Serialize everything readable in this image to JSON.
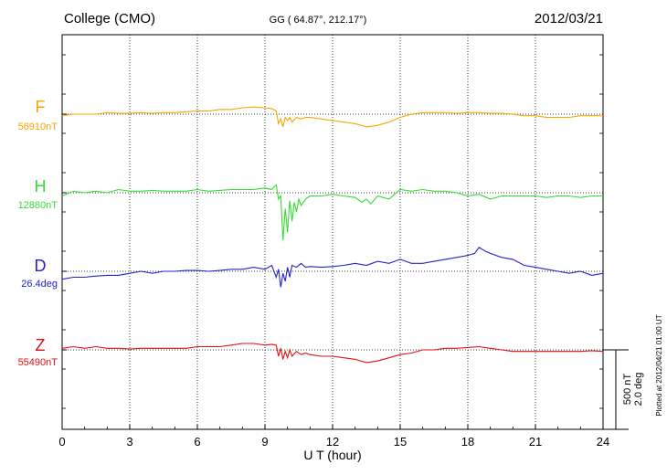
{
  "header": {
    "station": "College (CMO)",
    "coords": "GG ( 64.87°, 212.17°)",
    "date": "2012/03/21"
  },
  "plot_note": "Plotted at 2012/04/21 01:00 UT",
  "chart_data": {
    "type": "line",
    "xlabel": "U T (hour)",
    "xlim": [
      0,
      24
    ],
    "xticks": [
      "0",
      "3",
      "6",
      "9",
      "12",
      "15",
      "18",
      "21",
      "24"
    ],
    "grid": true,
    "scale_bar": {
      "line1": "500 nT",
      "line2": "2.0 deg"
    },
    "series": [
      {
        "name": "F",
        "baseline_label": "56910nT",
        "color": "#f5a500",
        "x": [
          0,
          0.5,
          1,
          1.5,
          2,
          2.5,
          3,
          3.5,
          4,
          4.5,
          5,
          5.5,
          6,
          6.5,
          7,
          7.5,
          8,
          8.5,
          9,
          9.3,
          9.5,
          9.6,
          9.7,
          9.8,
          9.9,
          10,
          10.1,
          10.2,
          10.4,
          10.6,
          10.8,
          11,
          11.5,
          12,
          12.5,
          13,
          13.5,
          14,
          14.5,
          15,
          15.5,
          16,
          16.5,
          17,
          17.5,
          18,
          18.5,
          19,
          19.5,
          20,
          20.5,
          21,
          21.5,
          22,
          22.5,
          23,
          23.5,
          24
        ],
        "values": [
          -10,
          0,
          0,
          0,
          10,
          5,
          5,
          10,
          5,
          10,
          10,
          15,
          20,
          20,
          30,
          30,
          40,
          45,
          40,
          35,
          20,
          -60,
          -30,
          -80,
          -20,
          -40,
          -20,
          -50,
          -20,
          -30,
          -20,
          -20,
          -30,
          -40,
          -50,
          -60,
          -80,
          -70,
          -50,
          -20,
          0,
          10,
          10,
          10,
          5,
          10,
          10,
          5,
          5,
          0,
          -10,
          -10,
          -20,
          -20,
          -20,
          -10,
          -10,
          -10
        ]
      },
      {
        "name": "H",
        "baseline_label": "12880nT",
        "color": "#33dd33",
        "x": [
          0,
          0.5,
          1,
          1.5,
          2,
          2.5,
          3,
          3.5,
          4,
          4.5,
          5,
          5.5,
          6,
          6.5,
          7,
          7.5,
          8,
          8.5,
          9,
          9.3,
          9.5,
          9.6,
          9.7,
          9.8,
          9.9,
          10,
          10.1,
          10.2,
          10.3,
          10.4,
          10.5,
          10.6,
          10.8,
          11,
          11.5,
          12,
          12.5,
          13,
          13.3,
          13.5,
          13.7,
          14,
          14.5,
          15,
          15.5,
          16,
          16.5,
          17,
          17.5,
          18,
          18.5,
          19,
          19.5,
          20,
          20.5,
          21,
          21.5,
          22,
          22.5,
          23,
          23.5,
          24
        ],
        "values": [
          -20,
          10,
          0,
          10,
          0,
          20,
          10,
          10,
          15,
          10,
          10,
          10,
          20,
          10,
          15,
          20,
          20,
          20,
          30,
          20,
          50,
          -40,
          -20,
          -300,
          -100,
          -250,
          -50,
          -180,
          -60,
          -120,
          -40,
          -80,
          -40,
          -20,
          -20,
          -10,
          -20,
          -30,
          -60,
          -40,
          -70,
          -20,
          -40,
          20,
          10,
          20,
          10,
          10,
          0,
          -20,
          -10,
          -40,
          -20,
          -20,
          -20,
          -20,
          -30,
          -20,
          -20,
          -30,
          -20,
          -20
        ]
      },
      {
        "name": "D",
        "baseline_label": "26.4deg",
        "color": "#2222cc",
        "x": [
          0,
          0.5,
          1,
          1.5,
          2,
          2.5,
          3,
          3.5,
          4,
          4.5,
          5,
          5.5,
          6,
          6.5,
          7,
          7.5,
          8,
          8.5,
          9,
          9.3,
          9.5,
          9.6,
          9.7,
          9.8,
          9.9,
          10,
          10.1,
          10.2,
          10.4,
          10.6,
          10.8,
          11,
          11.5,
          12,
          12.5,
          13,
          13.5,
          14,
          14.5,
          15,
          15.5,
          16,
          16.5,
          17,
          17.5,
          18,
          18.3,
          18.5,
          18.8,
          19,
          19.5,
          20,
          20.5,
          21,
          21.5,
          22,
          22.5,
          23,
          23.5,
          24
        ],
        "values": [
          -0.2,
          -0.15,
          -0.15,
          -0.12,
          -0.1,
          -0.1,
          -0.05,
          0,
          -0.05,
          0,
          0,
          0.02,
          0.02,
          0,
          0.02,
          0.05,
          0.05,
          0.1,
          0.05,
          0.15,
          -0.15,
          0.05,
          -0.4,
          -0.05,
          -0.25,
          0.1,
          -0.15,
          0.15,
          0.1,
          0.2,
          0.1,
          0.12,
          0.1,
          0.12,
          0.15,
          0.2,
          0.15,
          0.25,
          0.2,
          0.3,
          0.2,
          0.2,
          0.25,
          0.3,
          0.35,
          0.4,
          0.45,
          0.6,
          0.5,
          0.45,
          0.35,
          0.3,
          0.15,
          0.1,
          0.05,
          0,
          -0.05,
          0,
          -0.1,
          -0.05
        ]
      },
      {
        "name": "Z",
        "baseline_label": "55490nT",
        "color": "#dd1111",
        "x": [
          0,
          0.5,
          1,
          1.5,
          2,
          2.5,
          3,
          3.5,
          4,
          4.5,
          5,
          5.5,
          6,
          6.5,
          7,
          7.5,
          8,
          8.5,
          9,
          9.3,
          9.5,
          9.6,
          9.7,
          9.8,
          9.9,
          10,
          10.1,
          10.2,
          10.4,
          10.6,
          10.8,
          11,
          11.5,
          12,
          12.5,
          13,
          13.5,
          14,
          14.5,
          15,
          15.5,
          16,
          16.5,
          17,
          17.5,
          18,
          18.5,
          19,
          19.5,
          20,
          20.5,
          21,
          21.5,
          22,
          22.5,
          23,
          23.5,
          24
        ],
        "values": [
          10,
          20,
          10,
          20,
          10,
          10,
          5,
          10,
          10,
          10,
          10,
          10,
          20,
          20,
          20,
          30,
          40,
          40,
          30,
          35,
          30,
          -40,
          10,
          -60,
          -10,
          -50,
          0,
          -40,
          -10,
          -30,
          -20,
          -30,
          -40,
          -40,
          -50,
          -60,
          -80,
          -70,
          -50,
          -30,
          -20,
          0,
          0,
          10,
          10,
          15,
          20,
          10,
          0,
          -10,
          -10,
          -10,
          -10,
          -10,
          -10,
          -10,
          -5,
          -10
        ]
      }
    ]
  }
}
